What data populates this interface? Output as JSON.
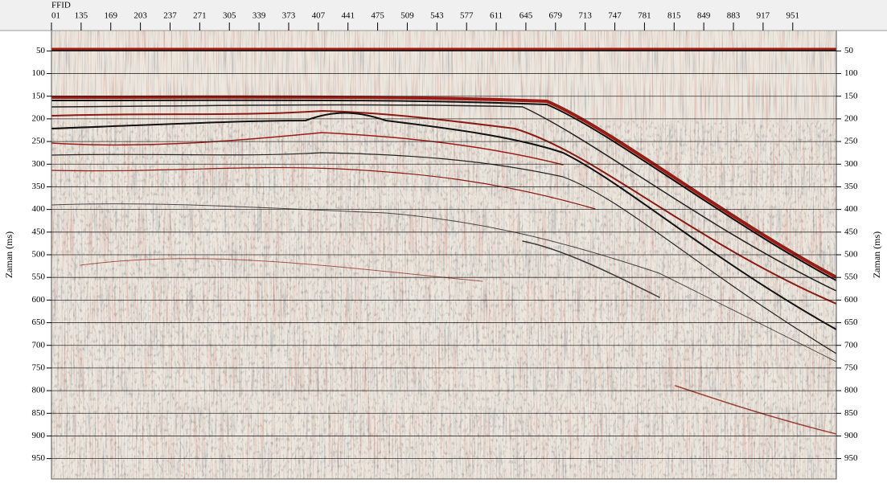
{
  "chart_data": {
    "type": "seismic",
    "xlabel": "FFID",
    "ylabel": "Zaman (ms)",
    "xlim": [
      101,
      1001
    ],
    "xticks": [
      {
        "value": 101,
        "label": "01"
      },
      135,
      169,
      203,
      237,
      271,
      305,
      339,
      373,
      407,
      441,
      475,
      509,
      543,
      577,
      611,
      645,
      679,
      713,
      747,
      781,
      815,
      849,
      883,
      917,
      951
    ],
    "ylim": [
      5,
      995
    ],
    "yticks": [
      50,
      100,
      150,
      200,
      250,
      300,
      350,
      400,
      450,
      500,
      550,
      600,
      650,
      700,
      750,
      800,
      850,
      900,
      950
    ],
    "grid": true
  }
}
